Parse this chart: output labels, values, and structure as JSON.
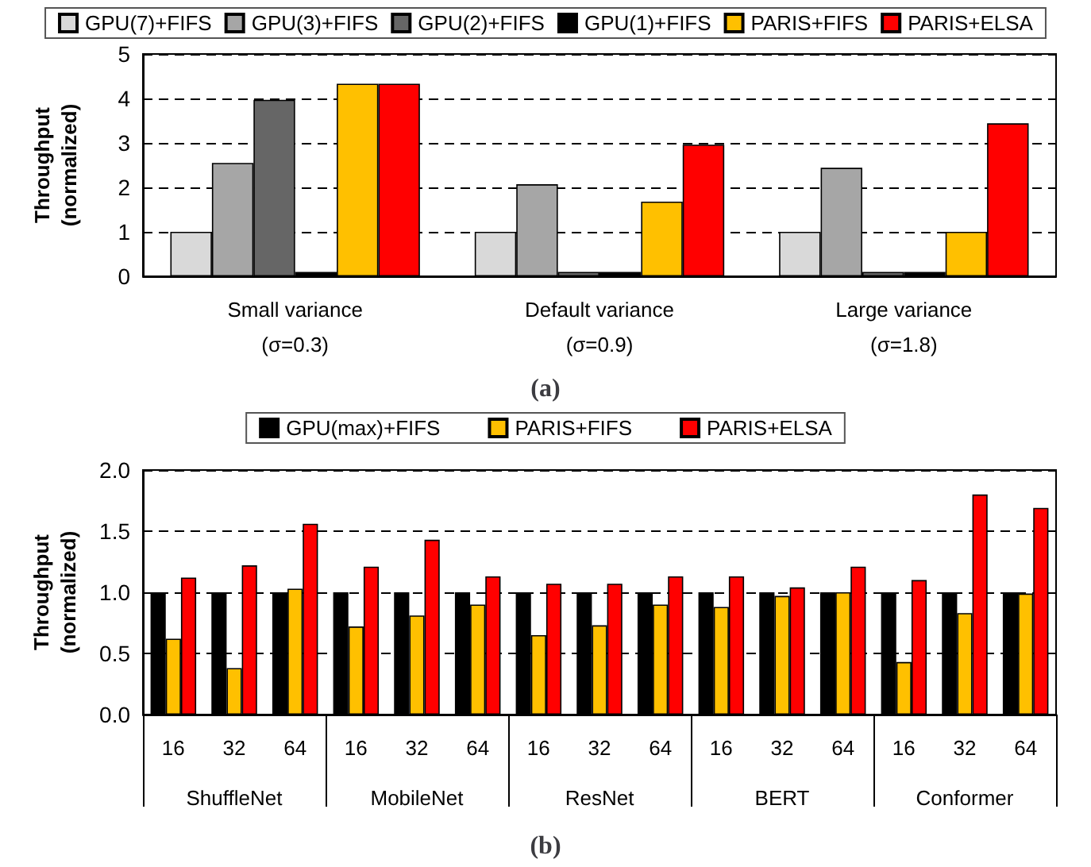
{
  "chart_data": [
    {
      "type": "bar",
      "title": "(a)",
      "ylabel": "Throughput\n(normalized)",
      "categories": [
        "Small variance\n(σ=0.3)",
        "Default variance\n(σ=0.9)",
        "Large variance\n(σ=1.8)"
      ],
      "series": [
        {
          "name": "GPU(7)+FIFS",
          "color": "#d9d9d9",
          "values": [
            1,
            1,
            1
          ]
        },
        {
          "name": "GPU(3)+FIFS",
          "color": "#a6a6a6",
          "values": [
            2.55,
            2.07,
            2.44
          ]
        },
        {
          "name": "GPU(2)+FIFS",
          "color": "#666666",
          "values": [
            3.97,
            0.1,
            0.1
          ]
        },
        {
          "name": "GPU(1)+FIFS",
          "color": "#000000",
          "values": [
            0.1,
            0.1,
            0.1
          ]
        },
        {
          "name": "PARIS+FIFS",
          "color": "#ffc000",
          "values": [
            4.33,
            1.68,
            1.0
          ]
        },
        {
          "name": "PARIS+ELSA",
          "color": "#ff0000",
          "values": [
            4.33,
            2.96,
            3.44
          ]
        }
      ],
      "ylim": [
        0,
        5
      ],
      "yticks": [
        0,
        1,
        2,
        3,
        4,
        5
      ],
      "grid": "y",
      "legend": "top"
    },
    {
      "type": "bar",
      "title": "(b)",
      "ylabel": "Throughput\n(normalized)",
      "categories": [
        "16",
        "32",
        "64",
        "16",
        "32",
        "64",
        "16",
        "32",
        "64",
        "16",
        "32",
        "64",
        "16",
        "32",
        "64"
      ],
      "annotations": [
        "ShuffleNet",
        "MobileNet",
        "ResNet",
        "BERT",
        "Conformer"
      ],
      "series": [
        {
          "name": "GPU(max)+FIFS",
          "color": "#000000",
          "values": [
            1,
            1,
            1,
            1,
            1,
            1,
            1,
            1,
            1,
            1,
            1,
            1,
            1,
            1,
            1
          ]
        },
        {
          "name": "PARIS+FIFS",
          "color": "#ffc000",
          "values": [
            0.62,
            0.38,
            1.03,
            0.72,
            0.81,
            0.9,
            0.65,
            0.73,
            0.9,
            0.88,
            0.97,
            1.0,
            0.43,
            0.83,
            0.99
          ]
        },
        {
          "name": "PARIS+ELSA",
          "color": "#ff0000",
          "values": [
            1.12,
            1.22,
            1.56,
            1.21,
            1.43,
            1.13,
            1.07,
            1.07,
            1.13,
            1.13,
            1.04,
            1.21,
            1.1,
            1.8,
            1.69
          ]
        }
      ],
      "ylim": [
        0,
        2
      ],
      "yticks": [
        {
          "value": 0,
          "label": "0.0"
        },
        {
          "value": 0.5,
          "label": "0.5"
        },
        {
          "value": 1,
          "label": "1.0"
        },
        {
          "value": 1.5,
          "label": "1.5"
        },
        {
          "value": 2,
          "label": "2.0"
        }
      ],
      "grid": "y",
      "legend": "top"
    }
  ]
}
